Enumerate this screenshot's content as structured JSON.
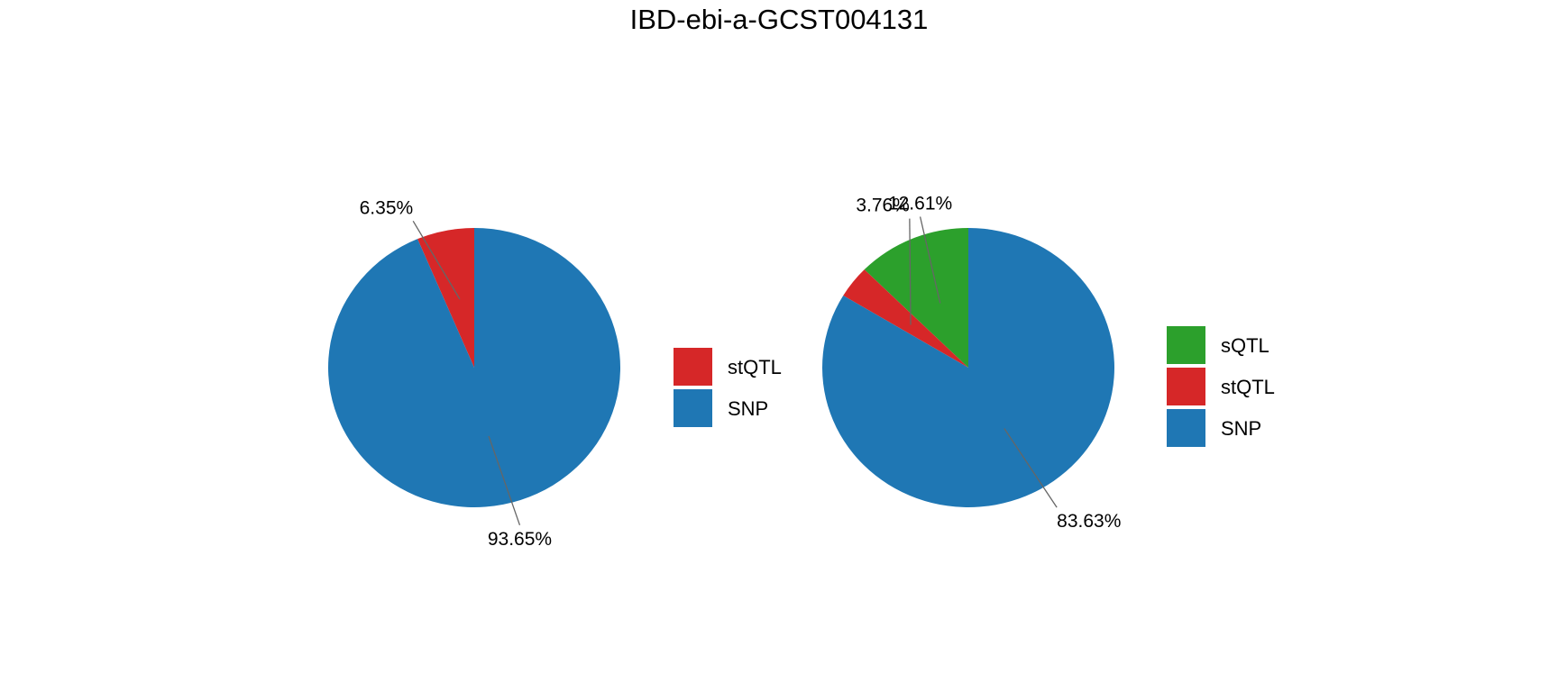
{
  "title": "IBD-ebi-a-GCST004131",
  "chart_data": [
    {
      "type": "pie",
      "title": "",
      "slices": [
        {
          "name": "stQTL",
          "value": 6.35,
          "label": "6.35%",
          "color": "#d62728"
        },
        {
          "name": "SNP",
          "value": 93.65,
          "label": "93.65%",
          "color": "#1f77b4"
        }
      ],
      "legend": [
        "stQTL",
        "SNP"
      ],
      "legend_position": "right"
    },
    {
      "type": "pie",
      "title": "",
      "slices": [
        {
          "name": "sQTL",
          "value": 12.61,
          "label": "12.61%",
          "color": "#2ca02c"
        },
        {
          "name": "stQTL",
          "value": 3.76,
          "label": "3.76%",
          "color": "#d62728"
        },
        {
          "name": "SNP",
          "value": 83.63,
          "label": "83.63%",
          "color": "#1f77b4"
        }
      ],
      "legend": [
        "sQTL",
        "stQTL",
        "SNP"
      ],
      "legend_position": "right"
    }
  ]
}
